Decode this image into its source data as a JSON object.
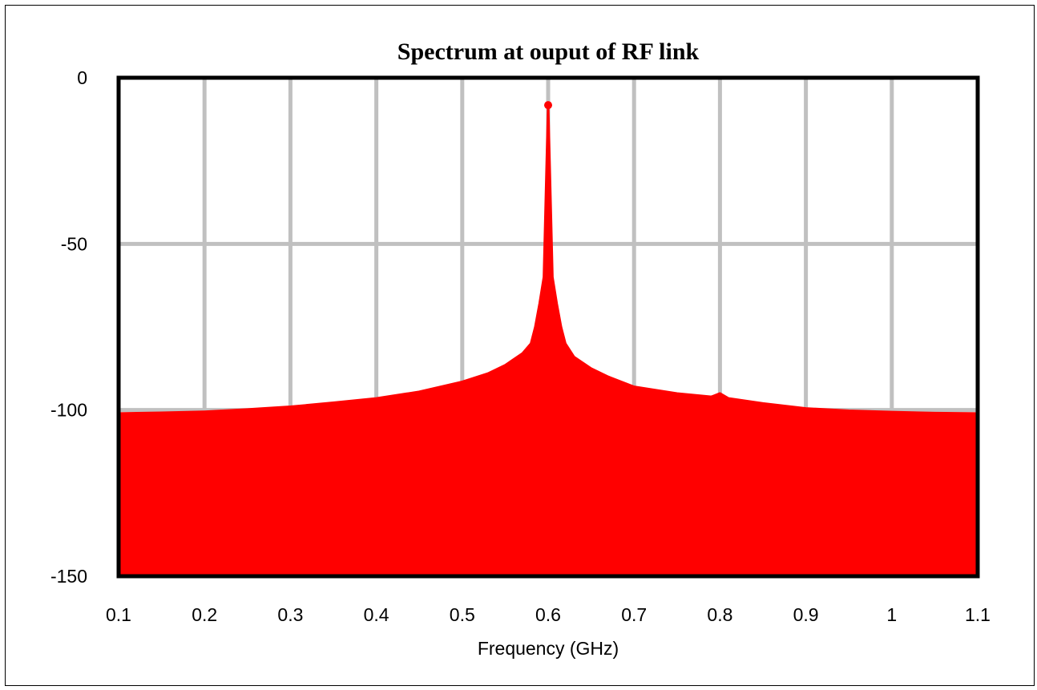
{
  "chart_data": {
    "type": "area",
    "title": "Spectrum at ouput of RF link",
    "xlabel": "Frequency (GHz)",
    "ylabel": "",
    "xlim": [
      0.1,
      1.1
    ],
    "ylim": [
      -150,
      0
    ],
    "xticks": [
      "0.1",
      "0.2",
      "0.3",
      "0.4",
      "0.5",
      "0.6",
      "0.7",
      "0.8",
      "0.9",
      "1",
      "1.1"
    ],
    "yticks": [
      "0",
      "-50",
      "-100",
      "-150"
    ],
    "grid": true,
    "legend": "none",
    "series": [
      {
        "color": "#ff0000",
        "x": [
          0.1,
          0.15,
          0.2,
          0.25,
          0.3,
          0.35,
          0.4,
          0.45,
          0.5,
          0.53,
          0.55,
          0.57,
          0.58,
          0.585,
          0.59,
          0.595,
          0.6,
          0.605,
          0.61,
          0.615,
          0.62,
          0.63,
          0.65,
          0.67,
          0.7,
          0.75,
          0.79,
          0.8,
          0.81,
          0.85,
          0.9,
          0.95,
          1.0,
          1.05,
          1.1
        ],
        "y": [
          -101,
          -100.8,
          -100.5,
          -99.8,
          -99,
          -97.8,
          -96.5,
          -94.5,
          -91.5,
          -89,
          -86.5,
          -83,
          -80,
          -75,
          -68,
          -60,
          -8,
          -60,
          -68,
          -75,
          -80,
          -84,
          -87.5,
          -90,
          -93,
          -95,
          -96,
          -95,
          -96.5,
          -98,
          -99.5,
          -100.2,
          -100.6,
          -100.9,
          -101
        ]
      }
    ]
  }
}
